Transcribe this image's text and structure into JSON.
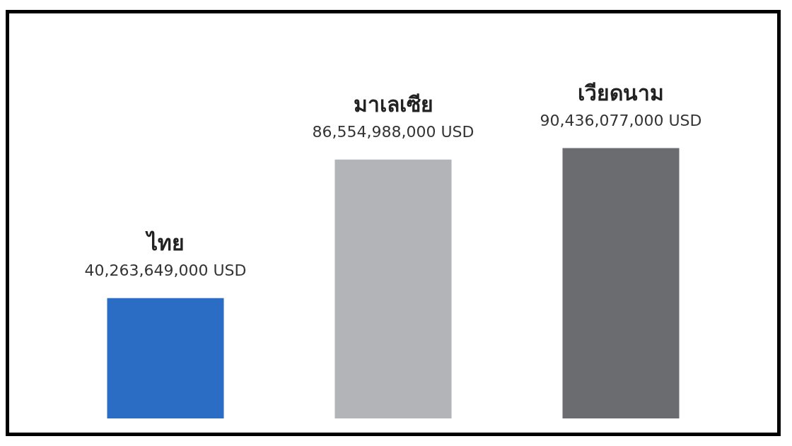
{
  "chart_data": {
    "type": "bar",
    "categories": [
      "ไทย",
      "มาเลเซีย",
      "เวียดนาม"
    ],
    "values": [
      40263649000,
      86554988000,
      90436077000
    ],
    "colors": [
      "#2b6cc4",
      "#b2b4b7",
      "#6b6c6f"
    ],
    "value_labels": [
      "40,263,649,000 USD",
      "86,554,988,000 USD",
      "90,436,077,000 USD"
    ]
  }
}
